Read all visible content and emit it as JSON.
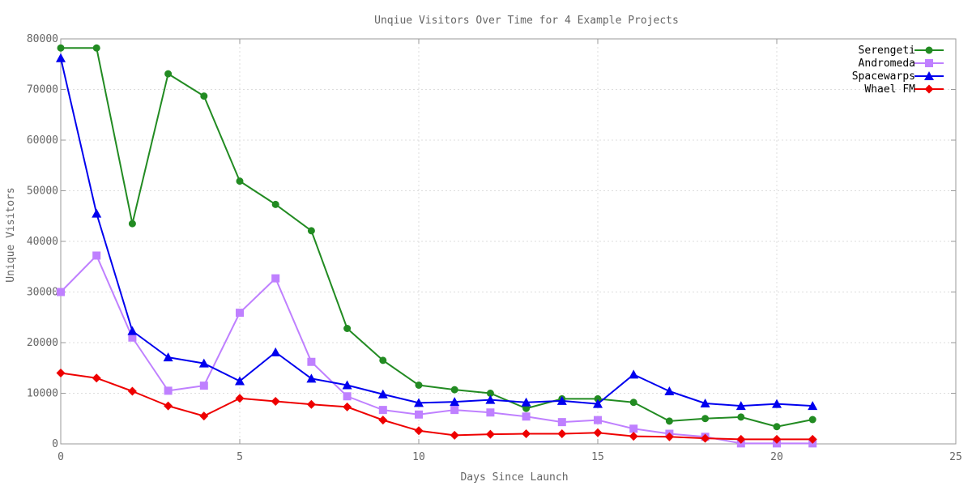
{
  "chart_data": {
    "type": "line",
    "title": "Unqiue Visitors Over Time for 4 Example Projects",
    "xlabel": "Days Since Launch",
    "ylabel": "Unique Visitors",
    "xlim": [
      0,
      25
    ],
    "ylim": [
      0,
      80000
    ],
    "xticks": [
      0,
      5,
      10,
      15,
      20,
      25
    ],
    "yticks": [
      0,
      10000,
      20000,
      30000,
      40000,
      50000,
      60000,
      70000,
      80000
    ],
    "grid": true,
    "legend_position": "top-right",
    "x": [
      0,
      1,
      2,
      3,
      4,
      5,
      6,
      7,
      8,
      9,
      10,
      11,
      12,
      13,
      14,
      15,
      16,
      17,
      18,
      19,
      20,
      21
    ],
    "series": [
      {
        "name": "Serengeti",
        "color": "#228b22",
        "marker": "circle",
        "values": [
          78200,
          78200,
          43500,
          73100,
          68700,
          51900,
          47300,
          42100,
          22800,
          16500,
          11600,
          10700,
          10000,
          7000,
          8900,
          8900,
          8200,
          4500,
          5000,
          5300,
          3400,
          4800
        ]
      },
      {
        "name": "Andromeda",
        "color": "#bf80ff",
        "marker": "square",
        "values": [
          30000,
          37200,
          21000,
          10500,
          11500,
          25900,
          32700,
          16200,
          9400,
          6700,
          5800,
          6700,
          6200,
          5400,
          4300,
          4700,
          3000,
          2000,
          1400,
          100,
          100,
          100
        ]
      },
      {
        "name": "Spacewarps",
        "color": "#0000ee",
        "marker": "triangle",
        "values": [
          76200,
          45500,
          22300,
          17100,
          15900,
          12400,
          18100,
          12900,
          11600,
          9800,
          8100,
          8300,
          8700,
          8200,
          8500,
          7900,
          13700,
          10400,
          8000,
          7500,
          7900,
          7500
        ]
      },
      {
        "name": "Whael FM",
        "color": "#ee0000",
        "marker": "diamond",
        "values": [
          14000,
          13000,
          10400,
          7500,
          5500,
          9000,
          8400,
          7800,
          7300,
          4700,
          2600,
          1700,
          1900,
          2000,
          2000,
          2200,
          1500,
          1400,
          1100,
          900,
          900,
          900
        ]
      }
    ]
  }
}
